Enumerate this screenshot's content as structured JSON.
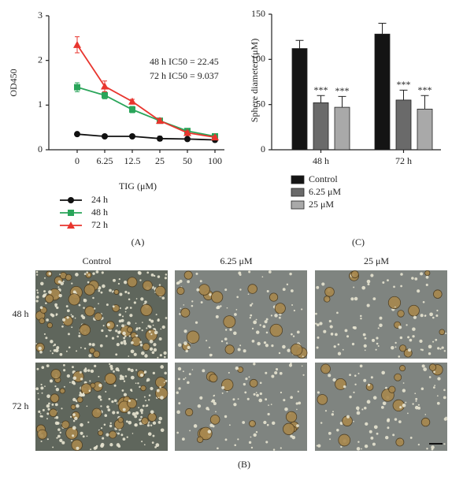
{
  "chart_data": [
    {
      "type": "line",
      "panel": "(A)",
      "x_label": "TIG (μM)",
      "y_label": "OD450",
      "categories": [
        "0",
        "6.25",
        "12.5",
        "25",
        "50",
        "100"
      ],
      "ylim": [
        0,
        3
      ],
      "yticks": [
        0,
        1,
        2,
        3
      ],
      "annotations": [
        "48 h IC50 = 22.45",
        "72 h IC50 = 9.037"
      ],
      "series": [
        {
          "name": "24 h",
          "color": "#111111",
          "marker": "circle",
          "values": [
            0.35,
            0.3,
            0.3,
            0.25,
            0.24,
            0.22
          ],
          "errors": [
            0.03,
            0.03,
            0.03,
            0.05,
            0.04,
            0.04
          ]
        },
        {
          "name": "48 h",
          "color": "#2aa55a",
          "marker": "square",
          "values": [
            1.4,
            1.22,
            0.9,
            0.65,
            0.42,
            0.3
          ],
          "errors": [
            0.1,
            0.08,
            0.07,
            0.05,
            0.04,
            0.04
          ]
        },
        {
          "name": "72 h",
          "color": "#e8352e",
          "marker": "triangle",
          "values": [
            2.35,
            1.42,
            1.08,
            0.65,
            0.38,
            0.28
          ],
          "errors": [
            0.18,
            0.12,
            0.05,
            0.05,
            0.04,
            0.03
          ]
        }
      ]
    },
    {
      "type": "bar",
      "panel": "(C)",
      "y_label": "Sphere diameter (μM)",
      "categories": [
        "48 h",
        "72 h"
      ],
      "ylim": [
        0,
        150
      ],
      "yticks": [
        0,
        50,
        100,
        150
      ],
      "series": [
        {
          "name": "Control",
          "color": "#141414",
          "values": [
            112,
            128
          ],
          "errors": [
            9,
            12
          ]
        },
        {
          "name": "6.25 μM",
          "color": "#6a6a6a",
          "values": [
            52,
            55
          ],
          "errors": [
            8,
            11
          ],
          "value_labels": [
            "***",
            "***"
          ]
        },
        {
          "name": "25 μM",
          "color": "#a9a9a9",
          "values": [
            47,
            45
          ],
          "errors": [
            12,
            15
          ],
          "value_labels": [
            "***",
            "***"
          ]
        }
      ]
    }
  ],
  "panel_b": {
    "label": "(B)",
    "columns": [
      "Control",
      "6.25 μM",
      "25 μM"
    ],
    "rows": [
      "48 h",
      "72 h"
    ]
  }
}
